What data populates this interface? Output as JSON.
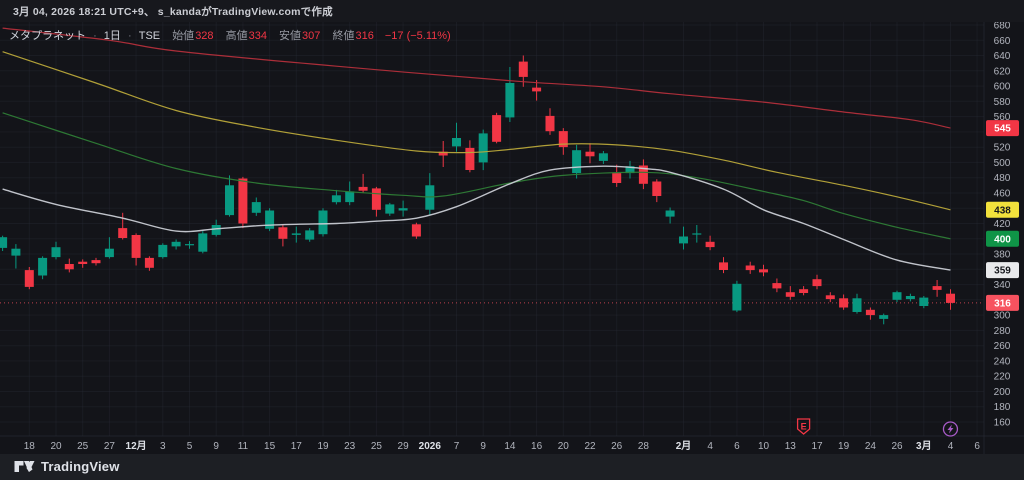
{
  "header": {
    "attribution": "3月 04, 2026 18:21 UTC+9、 s_kandaがTradingView.comで作成"
  },
  "legend": {
    "symbol": "メタプラネット",
    "separator": "·",
    "interval": "1日",
    "exchange": "TSE",
    "fields": [
      {
        "label": "始値",
        "value": "328"
      },
      {
        "label": "高値",
        "value": "334"
      },
      {
        "label": "安値",
        "value": "307"
      },
      {
        "label": "終値",
        "value": "316"
      }
    ],
    "change": "−17 (−5.11%)"
  },
  "footer": {
    "logo_text": "TradingView"
  },
  "colors": {
    "background": "#131419",
    "footer": "#1d1f24",
    "grid": "#2a2e39",
    "axis_text": "#b2b5be",
    "axis_text_strong": "#dde0e6",
    "candle_up": "#089981",
    "candle_down": "#f23645",
    "price_line": "#f7525f"
  },
  "chart_data": {
    "type": "candlestick",
    "title": "メタプラネット 1日 TSE",
    "last_price": 316,
    "prev_close": 333,
    "price_line": {
      "value": 316,
      "color": "#f7525f",
      "style": "dotted"
    },
    "y_axis": {
      "min": 160,
      "max": 680,
      "step": 20,
      "hidden_ticks": [
        320,
        360,
        400,
        440,
        540
      ]
    },
    "x_labels": [
      {
        "text": "18",
        "index": 2,
        "strong": false
      },
      {
        "text": "20",
        "index": 4,
        "strong": false
      },
      {
        "text": "25",
        "index": 6,
        "strong": false
      },
      {
        "text": "27",
        "index": 8,
        "strong": false
      },
      {
        "text": "12月",
        "index": 10,
        "strong": true
      },
      {
        "text": "3",
        "index": 12,
        "strong": false
      },
      {
        "text": "5",
        "index": 14,
        "strong": false
      },
      {
        "text": "9",
        "index": 16,
        "strong": false
      },
      {
        "text": "11",
        "index": 18,
        "strong": false
      },
      {
        "text": "15",
        "index": 20,
        "strong": false
      },
      {
        "text": "17",
        "index": 22,
        "strong": false
      },
      {
        "text": "19",
        "index": 24,
        "strong": false
      },
      {
        "text": "23",
        "index": 26,
        "strong": false
      },
      {
        "text": "25",
        "index": 28,
        "strong": false
      },
      {
        "text": "29",
        "index": 30,
        "strong": false
      },
      {
        "text": "2026",
        "index": 32,
        "strong": true
      },
      {
        "text": "7",
        "index": 34,
        "strong": false
      },
      {
        "text": "9",
        "index": 36,
        "strong": false
      },
      {
        "text": "14",
        "index": 38,
        "strong": false
      },
      {
        "text": "16",
        "index": 40,
        "strong": false
      },
      {
        "text": "20",
        "index": 42,
        "strong": false
      },
      {
        "text": "22",
        "index": 44,
        "strong": false
      },
      {
        "text": "26",
        "index": 46,
        "strong": false
      },
      {
        "text": "28",
        "index": 48,
        "strong": false
      },
      {
        "text": "2月",
        "index": 51,
        "strong": true
      },
      {
        "text": "4",
        "index": 53,
        "strong": false
      },
      {
        "text": "6",
        "index": 55,
        "strong": false
      },
      {
        "text": "10",
        "index": 57,
        "strong": false
      },
      {
        "text": "13",
        "index": 59,
        "strong": false
      },
      {
        "text": "17",
        "index": 61,
        "strong": false
      },
      {
        "text": "19",
        "index": 63,
        "strong": false
      },
      {
        "text": "24",
        "index": 65,
        "strong": false
      },
      {
        "text": "26",
        "index": 67,
        "strong": false
      },
      {
        "text": "3月",
        "index": 69,
        "strong": true
      },
      {
        "text": "4",
        "index": 71,
        "strong": false
      },
      {
        "text": "6",
        "index": 73,
        "strong": false
      }
    ],
    "dates": [
      "11/14",
      "11/17",
      "11/18",
      "11/19",
      "11/20",
      "11/21",
      "11/25",
      "11/26",
      "11/27",
      "11/28",
      "12/1",
      "12/2",
      "12/3",
      "12/4",
      "12/5",
      "12/8",
      "12/9",
      "12/10",
      "12/11",
      "12/12",
      "12/15",
      "12/16",
      "12/17",
      "12/18",
      "12/19",
      "12/22",
      "12/23",
      "12/24",
      "12/25",
      "12/26",
      "12/29",
      "12/30",
      "1/5",
      "1/6",
      "1/7",
      "1/8",
      "1/9",
      "1/13",
      "1/14",
      "1/15",
      "1/16",
      "1/19",
      "1/20",
      "1/21",
      "1/22",
      "1/23",
      "1/26",
      "1/27",
      "1/28",
      "1/29",
      "1/30",
      "2/2",
      "2/3",
      "2/4",
      "2/5",
      "2/6",
      "2/9",
      "2/10",
      "2/12",
      "2/13",
      "2/16",
      "2/17",
      "2/18",
      "2/19",
      "2/20",
      "2/24",
      "2/25",
      "2/26",
      "2/27",
      "3/2",
      "3/3",
      "3/4"
    ],
    "ohlc": [
      [
        388,
        404,
        384,
        402
      ],
      [
        378,
        393,
        361,
        387
      ],
      [
        359,
        363,
        334,
        337
      ],
      [
        352,
        377,
        347,
        375
      ],
      [
        376,
        396,
        373,
        389
      ],
      [
        367,
        374,
        356,
        360
      ],
      [
        370,
        373,
        362,
        367
      ],
      [
        372,
        375,
        365,
        368
      ],
      [
        376,
        402,
        374,
        387
      ],
      [
        414,
        434,
        399,
        401
      ],
      [
        405,
        407,
        365,
        375
      ],
      [
        375,
        377,
        358,
        362
      ],
      [
        376,
        394,
        374,
        392
      ],
      [
        390,
        399,
        386,
        396
      ],
      [
        392,
        397,
        387,
        393
      ],
      [
        383,
        410,
        381,
        407
      ],
      [
        405,
        425,
        403,
        418
      ],
      [
        431,
        483,
        429,
        470
      ],
      [
        479,
        481,
        414,
        420
      ],
      [
        434,
        454,
        430,
        448
      ],
      [
        413,
        440,
        410,
        437
      ],
      [
        415,
        418,
        390,
        400
      ],
      [
        405,
        416,
        395,
        407
      ],
      [
        399,
        414,
        396,
        411
      ],
      [
        406,
        440,
        403,
        437
      ],
      [
        448,
        464,
        445,
        457
      ],
      [
        448,
        475,
        444,
        462
      ],
      [
        468,
        485,
        460,
        463
      ],
      [
        466,
        468,
        429,
        438
      ],
      [
        433,
        447,
        430,
        445
      ],
      [
        437,
        450,
        429,
        440
      ],
      [
        419,
        421,
        400,
        403
      ],
      [
        438,
        486,
        431,
        470
      ],
      [
        514,
        528,
        494,
        509
      ],
      [
        521,
        552,
        514,
        532
      ],
      [
        519,
        529,
        487,
        490
      ],
      [
        500,
        543,
        490,
        538
      ],
      [
        562,
        565,
        525,
        527
      ],
      [
        559,
        625,
        553,
        604
      ],
      [
        632,
        640,
        599,
        612
      ],
      [
        598,
        608,
        581,
        593
      ],
      [
        561,
        571,
        536,
        541
      ],
      [
        541,
        545,
        510,
        520
      ],
      [
        486,
        523,
        479,
        516
      ],
      [
        514,
        525,
        499,
        508
      ],
      [
        502,
        515,
        498,
        512
      ],
      [
        486,
        497,
        468,
        473
      ],
      [
        486,
        502,
        479,
        495
      ],
      [
        496,
        504,
        465,
        472
      ],
      [
        475,
        478,
        448,
        456
      ],
      [
        429,
        441,
        420,
        437
      ],
      [
        394,
        416,
        386,
        403
      ],
      [
        406,
        418,
        395,
        407
      ],
      [
        396,
        404,
        385,
        389
      ],
      [
        369,
        376,
        355,
        359
      ],
      [
        306,
        345,
        304,
        341
      ],
      [
        365,
        370,
        354,
        359
      ],
      [
        360,
        366,
        351,
        356
      ],
      [
        342,
        348,
        330,
        335
      ],
      [
        330,
        338,
        320,
        324
      ],
      [
        334,
        338,
        326,
        329
      ],
      [
        347,
        353,
        334,
        338
      ],
      [
        326,
        330,
        317,
        321
      ],
      [
        322,
        327,
        307,
        310
      ],
      [
        304,
        328,
        302,
        322
      ],
      [
        307,
        310,
        294,
        300
      ],
      [
        295,
        302,
        288,
        300
      ],
      [
        320,
        332,
        317,
        330
      ],
      [
        321,
        328,
        318,
        325
      ],
      [
        312,
        325,
        309,
        323
      ],
      [
        338,
        346,
        324,
        333
      ],
      [
        328,
        334,
        307,
        316
      ]
    ],
    "moving_averages": [
      {
        "name": "ma-red",
        "color": "#b42f3b",
        "badge": "545",
        "points": [
          [
            0,
            676
          ],
          [
            8,
            660
          ],
          [
            13,
            646
          ],
          [
            25,
            626
          ],
          [
            38,
            607
          ],
          [
            45,
            599
          ],
          [
            50,
            590
          ],
          [
            57,
            579
          ],
          [
            63,
            566
          ],
          [
            68,
            556
          ],
          [
            71,
            545
          ]
        ]
      },
      {
        "name": "ma-yellow",
        "color": "#b9a83a",
        "badge": "438",
        "points": [
          [
            0,
            645
          ],
          [
            7,
            604
          ],
          [
            13,
            568
          ],
          [
            19,
            546
          ],
          [
            25,
            529
          ],
          [
            31,
            515
          ],
          [
            35,
            513
          ],
          [
            38,
            517
          ],
          [
            42,
            524
          ],
          [
            46,
            523
          ],
          [
            50,
            516
          ],
          [
            54,
            503
          ],
          [
            58,
            487
          ],
          [
            63,
            470
          ],
          [
            67,
            455
          ],
          [
            71,
            438
          ]
        ]
      },
      {
        "name": "ma-green",
        "color": "#2e7d36",
        "badge": "400",
        "points": [
          [
            0,
            565
          ],
          [
            7,
            525
          ],
          [
            13,
            492
          ],
          [
            19,
            473
          ],
          [
            25,
            463
          ],
          [
            30,
            457
          ],
          [
            33,
            456
          ],
          [
            38,
            473
          ],
          [
            42,
            483
          ],
          [
            48,
            487
          ],
          [
            52,
            480
          ],
          [
            57,
            462
          ],
          [
            60,
            450
          ],
          [
            63,
            433
          ],
          [
            67,
            415
          ],
          [
            71,
            400
          ]
        ]
      },
      {
        "name": "ma-white",
        "color": "#c9ccd4",
        "badge": "359",
        "points": [
          [
            0,
            465
          ],
          [
            4,
            445
          ],
          [
            9,
            427
          ],
          [
            13,
            410
          ],
          [
            16,
            413
          ],
          [
            19,
            417
          ],
          [
            22,
            419
          ],
          [
            25,
            420
          ],
          [
            28,
            423
          ],
          [
            31,
            427
          ],
          [
            34,
            442
          ],
          [
            38,
            472
          ],
          [
            41,
            490
          ],
          [
            45,
            495
          ],
          [
            48,
            492
          ],
          [
            50,
            487
          ],
          [
            54,
            465
          ],
          [
            57,
            438
          ],
          [
            60,
            420
          ],
          [
            63,
            399
          ],
          [
            67,
            372
          ],
          [
            71,
            359
          ]
        ]
      }
    ],
    "badges": [
      {
        "value": "545",
        "bg": "#f23645",
        "fg": "#ffffff",
        "price": 545
      },
      {
        "value": "438",
        "bg": "#f2e13c",
        "fg": "#15171c",
        "price": 438
      },
      {
        "value": "400",
        "bg": "#0f9447",
        "fg": "#ffffff",
        "price": 400
      },
      {
        "value": "359",
        "bg": "#e9eaec",
        "fg": "#15171c",
        "price": 359
      },
      {
        "value": "316",
        "bg": "#f7525f",
        "fg": "#ffffff",
        "price": 316
      }
    ],
    "markers": [
      {
        "name": "earnings-icon",
        "glyph": "E",
        "index": 60,
        "color": "#f23645"
      },
      {
        "name": "flash-event-icon",
        "glyph": "bolt",
        "index": 71,
        "color": "#a85bc8"
      }
    ]
  }
}
